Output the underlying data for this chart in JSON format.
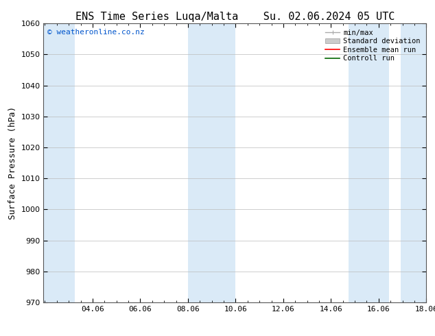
{
  "title_left": "ENS Time Series Luqa/Malta",
  "title_right": "Su. 02.06.2024 05 UTC",
  "ylabel": "Surface Pressure (hPa)",
  "watermark": "© weatheronline.co.nz",
  "watermark_color": "#0055cc",
  "ylim": [
    970,
    1060
  ],
  "yticks": [
    970,
    980,
    990,
    1000,
    1010,
    1020,
    1030,
    1040,
    1050,
    1060
  ],
  "xlim_start": 2.0,
  "xlim_end": 18.06,
  "xtick_labels": [
    "04.06",
    "06.06",
    "08.06",
    "10.06",
    "12.06",
    "14.06",
    "16.06",
    "18.06"
  ],
  "xtick_positions": [
    4.06,
    6.06,
    8.06,
    10.06,
    12.06,
    14.06,
    16.06,
    18.06
  ],
  "shaded_bands": [
    {
      "x_start": 2.0,
      "x_end": 3.3
    },
    {
      "x_start": 8.06,
      "x_end": 10.06
    },
    {
      "x_start": 14.8,
      "x_end": 16.5
    },
    {
      "x_start": 17.0,
      "x_end": 18.06
    }
  ],
  "band_color": "#daeaf7",
  "background_color": "#ffffff",
  "legend_items": [
    {
      "label": "min/max",
      "color": "#aaaaaa",
      "lw": 1
    },
    {
      "label": "Standard deviation",
      "color": "#cccccc",
      "lw": 6
    },
    {
      "label": "Ensemble mean run",
      "color": "#ff0000",
      "lw": 1.2
    },
    {
      "label": "Controll run",
      "color": "#006600",
      "lw": 1.2
    }
  ],
  "grid_color": "#bbbbbb",
  "tick_color": "#000000",
  "title_fontsize": 11,
  "label_fontsize": 9,
  "tick_fontsize": 8,
  "watermark_fontsize": 8,
  "legend_fontsize": 7.5
}
